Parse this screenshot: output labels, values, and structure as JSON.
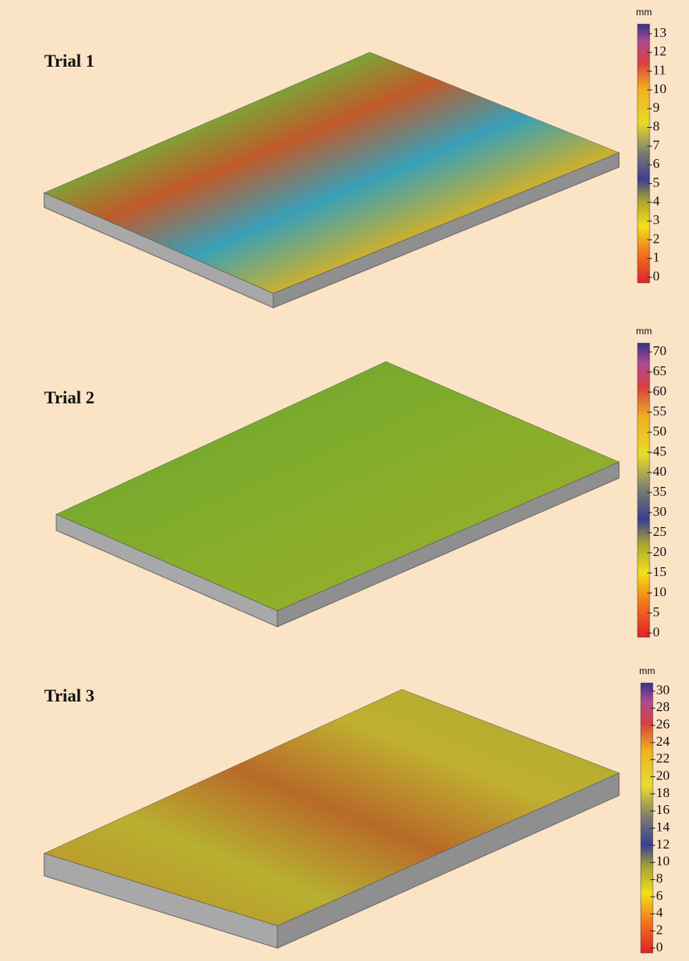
{
  "panels": [
    {
      "title": "Trial 1",
      "unit": "mm",
      "colorbar": {
        "lim": [
          0,
          13
        ],
        "ticks": [
          0,
          1,
          2,
          3,
          4,
          5,
          6,
          7,
          8,
          9,
          10,
          11,
          12,
          13
        ]
      }
    },
    {
      "title": "Trial 2",
      "unit": "mm",
      "colorbar": {
        "lim": [
          0,
          70
        ],
        "ticks": [
          0,
          5,
          10,
          15,
          20,
          25,
          30,
          35,
          40,
          45,
          50,
          55,
          60,
          65,
          70
        ]
      }
    },
    {
      "title": "Trial 3",
      "unit": "mm",
      "colorbar": {
        "lim": [
          0,
          30
        ],
        "ticks": [
          0,
          2,
          4,
          6,
          8,
          10,
          12,
          14,
          16,
          18,
          20,
          22,
          24,
          26,
          28,
          30
        ]
      }
    }
  ]
}
